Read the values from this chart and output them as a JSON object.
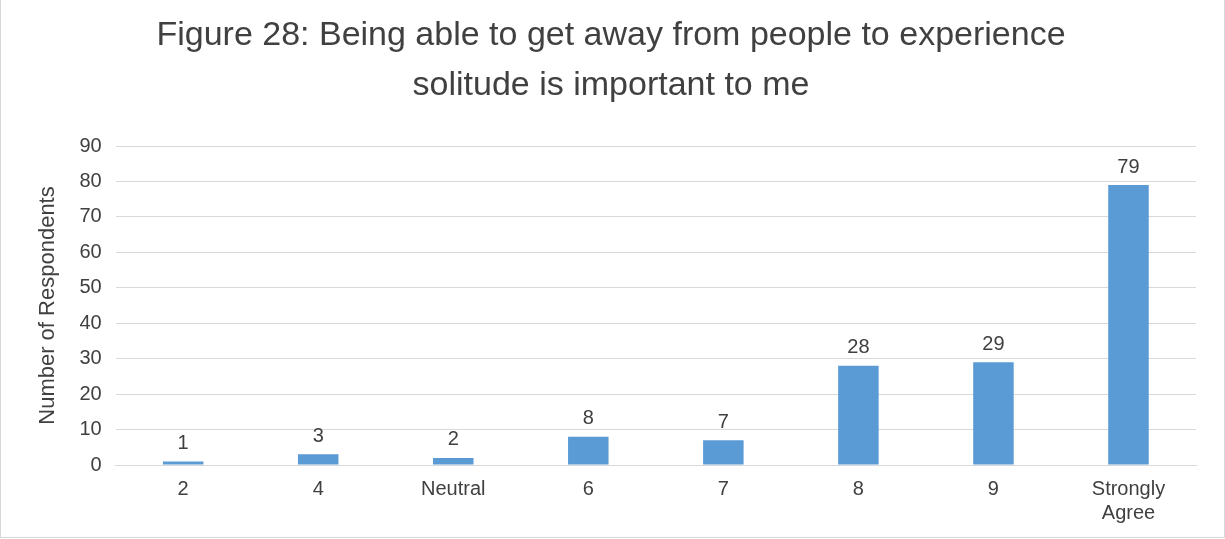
{
  "chart_data": {
    "type": "bar",
    "title": "Figure 28: Being able to get away from people to experience solitude is important to me",
    "ylabel": "Number of Respondents",
    "categories": [
      "2",
      "4",
      "Neutral",
      "6",
      "7",
      "8",
      "9",
      "Strongly Agree"
    ],
    "values": [
      1,
      3,
      2,
      8,
      7,
      28,
      29,
      79
    ],
    "color": "#5b9bd5",
    "ylim": [
      0,
      90
    ],
    "yticks": [
      0,
      10,
      20,
      30,
      40,
      50,
      60,
      70,
      80,
      90
    ],
    "grid": "y",
    "data_labels": true
  }
}
